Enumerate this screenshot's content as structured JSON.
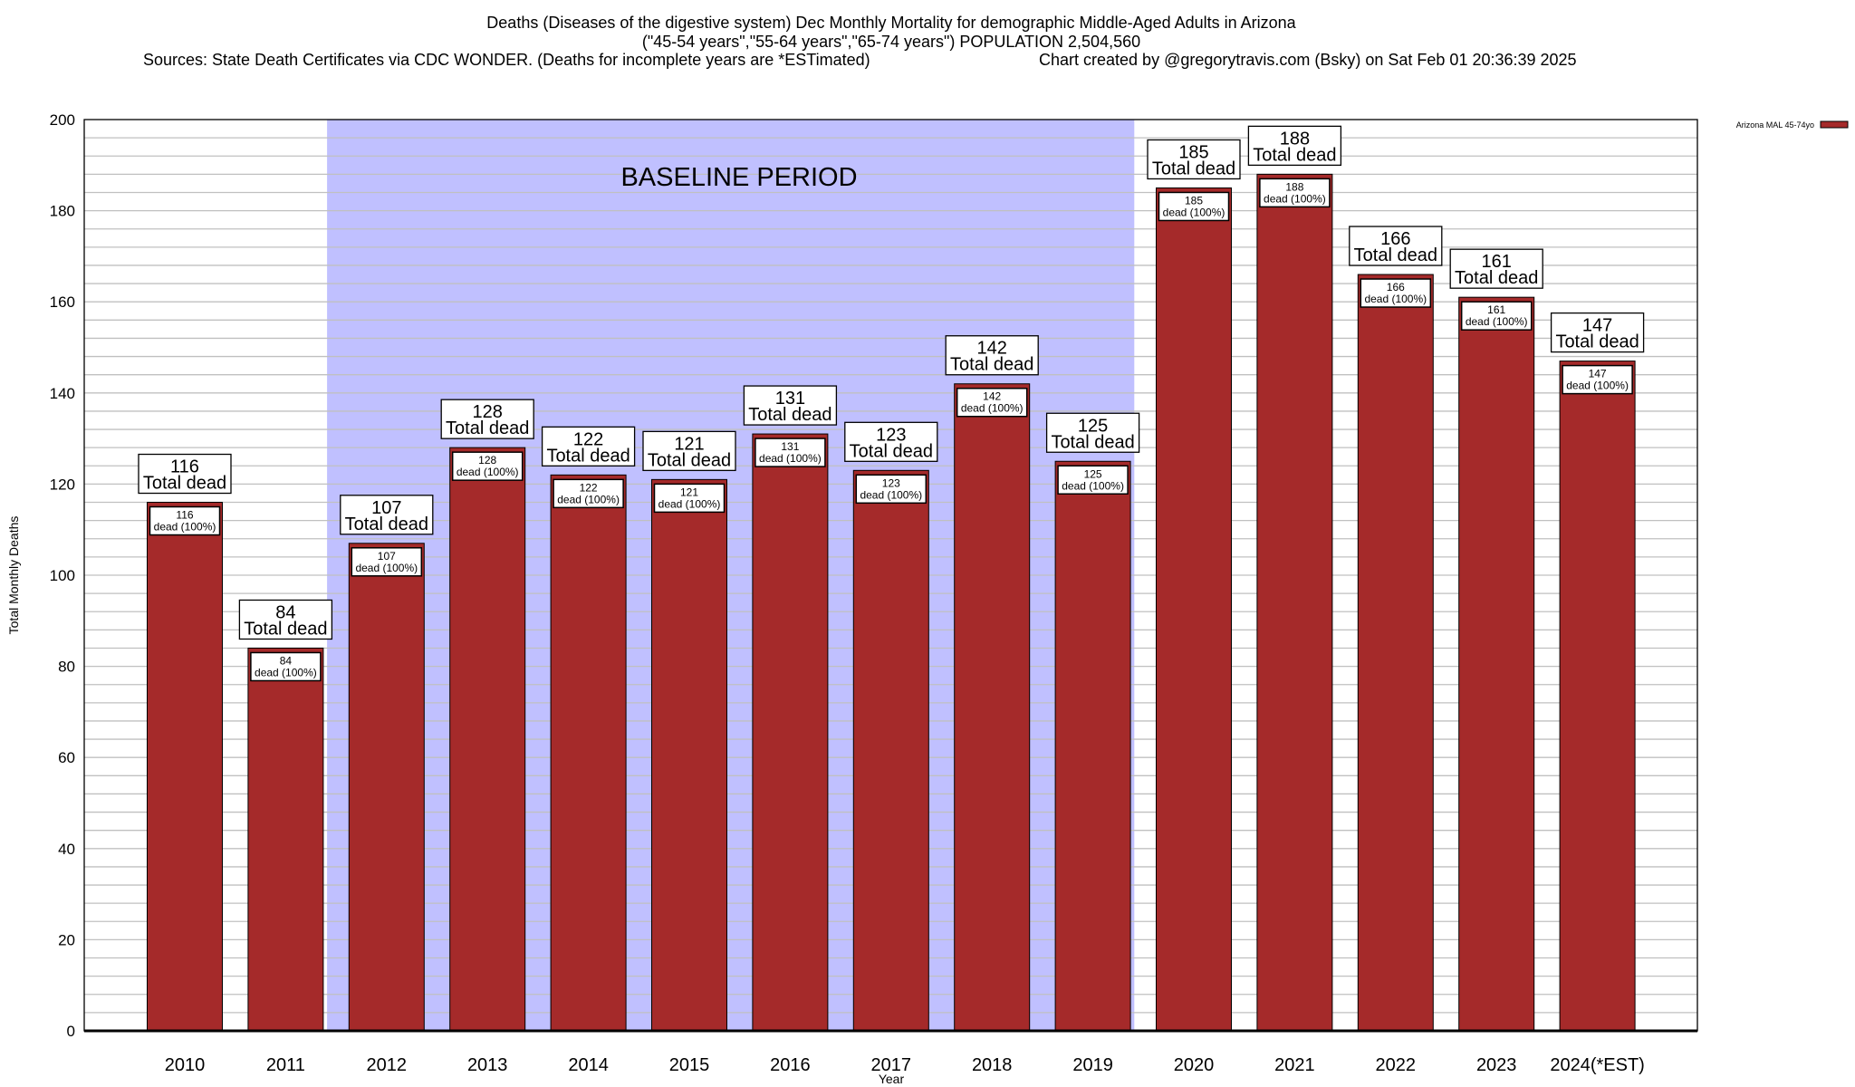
{
  "chart_data": {
    "type": "bar",
    "title_lines": [
      "Deaths (Diseases of the digestive system) Dec Monthly Mortality for demographic Middle-Aged Adults in Arizona",
      "(\"45-54 years\",\"55-64 years\",\"65-74 years\") POPULATION 2,504,560"
    ],
    "sources": "Sources: State Death Certificates via CDC WONDER. (Deaths for incomplete years are *ESTimated)",
    "credit": "Chart created by @gregorytravis.com (Bsky) on Sat Feb 01 20:36:39 2025",
    "xlabel": "Year",
    "ylabel": "Total Monthly Deaths",
    "ylim": [
      0,
      200
    ],
    "yticks": [
      0,
      20,
      40,
      60,
      80,
      100,
      120,
      140,
      160,
      180,
      200
    ],
    "minor_grid_step": 4,
    "categories": [
      "2010",
      "2011",
      "2012",
      "2013",
      "2014",
      "2015",
      "2016",
      "2017",
      "2018",
      "2019",
      "2020",
      "2021",
      "2022",
      "2023",
      "2024(*EST)"
    ],
    "values": [
      116,
      84,
      107,
      128,
      122,
      121,
      131,
      123,
      142,
      125,
      185,
      188,
      166,
      161,
      147
    ],
    "top_label_suffix": "Total dead",
    "inner_label_suffix": "dead (100%)",
    "baseline": {
      "label": "BASELINE PERIOD",
      "from": "2012",
      "to": "2019",
      "color": "#c0c0ff"
    },
    "legend": {
      "label": "Arizona MAL 45-74yo",
      "placement": "top-right outside"
    },
    "bar_color": "#a52a2a",
    "grid_color": "#c0c0c0"
  }
}
